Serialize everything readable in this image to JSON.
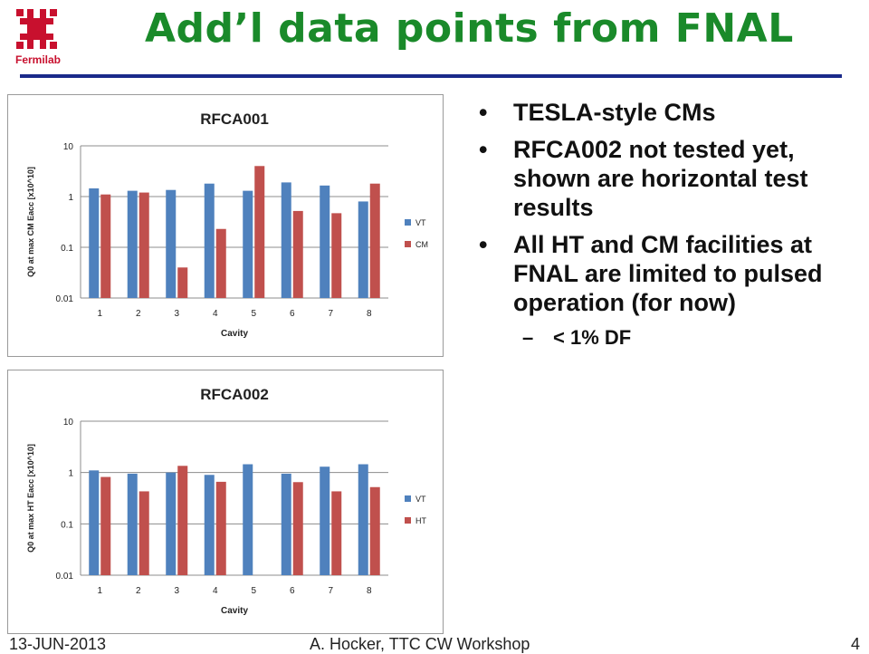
{
  "header": {
    "logo_text": "Fermilab",
    "title": "Add’l data points from FNAL"
  },
  "bullets": [
    {
      "text": "TESLA-style CMs"
    },
    {
      "text": "RFCA002 not tested yet, shown are horizontal test results"
    },
    {
      "text": "All HT and CM facilities at FNAL are limited to pulsed operation (for now)"
    }
  ],
  "sub_bullet": {
    "text": "< 1% DF"
  },
  "bullet_symbol": "•",
  "sub_symbol": "–",
  "footer": {
    "date": "13-JUN-2013",
    "center": "A. Hocker, TTC CW Workshop",
    "page": "4"
  },
  "colors": {
    "title_green": "#1a8a2a",
    "rule_blue": "#1a2a8a",
    "series_blue": "#4f81bd",
    "series_red": "#c0504d"
  },
  "chart_data": [
    {
      "type": "bar",
      "title": "RFCA001",
      "xlabel": "Cavity",
      "ylabel": "Q0 at max CM Eacc [x10^10]",
      "yscale": "log",
      "ylim": [
        0.01,
        10
      ],
      "yticks": [
        "0.01",
        "0.1",
        "1",
        "10"
      ],
      "ytick_values": [
        0.01,
        0.1,
        1,
        10
      ],
      "categories": [
        "1",
        "2",
        "3",
        "4",
        "5",
        "6",
        "7",
        "8"
      ],
      "legend_position": "right",
      "series": [
        {
          "name": "VT",
          "color": "#4f81bd",
          "values": [
            1.45,
            1.3,
            1.35,
            1.8,
            1.3,
            1.9,
            1.65,
            0.8
          ]
        },
        {
          "name": "CM",
          "color": "#c0504d",
          "values": [
            1.1,
            1.2,
            0.04,
            0.23,
            4.0,
            0.52,
            0.47,
            1.8
          ]
        }
      ]
    },
    {
      "type": "bar",
      "title": "RFCA002",
      "xlabel": "Cavity",
      "ylabel": "Q0 at max HT Eacc [x10^10]",
      "yscale": "log",
      "ylim": [
        0.01,
        10
      ],
      "yticks": [
        "0.01",
        "0.1",
        "1",
        "10"
      ],
      "ytick_values": [
        0.01,
        0.1,
        1,
        10
      ],
      "categories": [
        "1",
        "2",
        "3",
        "4",
        "5",
        "6",
        "7",
        "8"
      ],
      "legend_position": "right",
      "series": [
        {
          "name": "VT",
          "color": "#4f81bd",
          "values": [
            1.1,
            0.95,
            1.0,
            0.9,
            1.45,
            0.95,
            1.3,
            1.45
          ]
        },
        {
          "name": "HT",
          "color": "#c0504d",
          "values": [
            0.82,
            0.43,
            1.35,
            0.66,
            null,
            0.65,
            0.43,
            0.52
          ]
        }
      ]
    }
  ]
}
